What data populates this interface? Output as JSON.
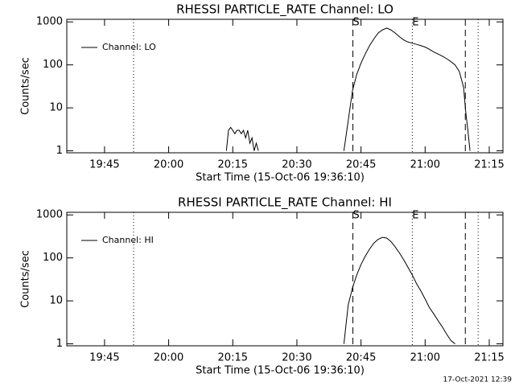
{
  "chart_data": [
    {
      "type": "line",
      "title": "RHESSI PARTICLE_RATE Channel: LO",
      "x_label": "Start Time (15-Oct-06 19:36:10)",
      "y_label": "Counts/sec",
      "log_y": true,
      "legend": "upper-left",
      "xlim": [
        1176.17,
        1278.2
      ],
      "ylim": [
        0.9,
        1150
      ],
      "xticks": [
        {
          "value": 1185,
          "label": "19:45"
        },
        {
          "value": 1200,
          "label": "20:00"
        },
        {
          "value": 1215,
          "label": "20:15"
        },
        {
          "value": 1230,
          "label": "20:30"
        },
        {
          "value": 1245,
          "label": "20:45"
        },
        {
          "value": 1260,
          "label": "21:00"
        },
        {
          "value": 1275,
          "label": "21:15"
        }
      ],
      "yticks": [
        1,
        10,
        100,
        1000
      ],
      "markers": [
        {
          "x": 1191.8,
          "style": "dotted"
        },
        {
          "x": 1243.1,
          "style": "dashed",
          "label": "S"
        },
        {
          "x": 1257,
          "style": "dotted",
          "label": "E"
        },
        {
          "x": 1269.4,
          "style": "dashed"
        },
        {
          "x": 1272.4,
          "style": "dotted"
        }
      ],
      "x": [
        1213.5,
        1214,
        1214.5,
        1215,
        1215.5,
        1216,
        1216.5,
        1217,
        1217.5,
        1218,
        1218.5,
        1219,
        1219.5,
        1220,
        1220.5,
        1221,
        1230,
        1241,
        1242,
        1243,
        1244,
        1245,
        1246,
        1247,
        1248,
        1249,
        1250,
        1251,
        1252,
        1253,
        1254,
        1255,
        1256,
        1257,
        1258,
        1259,
        1260,
        1261,
        1262,
        1263,
        1264,
        1265,
        1266,
        1267,
        1268,
        1269,
        1269.5,
        1270,
        1270.5
      ],
      "series": [
        {
          "name": "Channel: LO",
          "color": "#000000",
          "values": [
            1,
            3,
            3.5,
            3,
            2.5,
            3,
            3,
            2.5,
            3,
            2,
            3,
            1.5,
            2,
            1,
            1.5,
            1,
            null,
            1,
            5,
            25,
            60,
            110,
            180,
            280,
            400,
            550,
            650,
            720,
            650,
            550,
            450,
            380,
            340,
            320,
            300,
            280,
            260,
            230,
            200,
            180,
            160,
            140,
            120,
            100,
            70,
            30,
            8,
            3,
            1
          ]
        }
      ]
    },
    {
      "type": "line",
      "title": "RHESSI PARTICLE_RATE Channel: HI",
      "x_label": "Start Time (15-Oct-06 19:36:10)",
      "y_label": "Counts/sec",
      "log_y": true,
      "legend": "upper-left",
      "xlim": [
        1176.17,
        1278.2
      ],
      "ylim": [
        0.9,
        1150
      ],
      "xticks": [
        {
          "value": 1185,
          "label": "19:45"
        },
        {
          "value": 1200,
          "label": "20:00"
        },
        {
          "value": 1215,
          "label": "20:15"
        },
        {
          "value": 1230,
          "label": "20:30"
        },
        {
          "value": 1245,
          "label": "20:45"
        },
        {
          "value": 1260,
          "label": "21:00"
        },
        {
          "value": 1275,
          "label": "21:15"
        }
      ],
      "yticks": [
        1,
        10,
        100,
        1000
      ],
      "markers": [
        {
          "x": 1191.8,
          "style": "dotted"
        },
        {
          "x": 1243.1,
          "style": "dashed",
          "label": "S"
        },
        {
          "x": 1257,
          "style": "dotted",
          "label": "E"
        },
        {
          "x": 1269.4,
          "style": "dashed"
        },
        {
          "x": 1272.4,
          "style": "dotted"
        }
      ],
      "x": [
        1241,
        1242,
        1243,
        1244,
        1245,
        1246,
        1247,
        1248,
        1249,
        1250,
        1251,
        1252,
        1253,
        1254,
        1255,
        1256,
        1257,
        1258,
        1259,
        1260,
        1261,
        1262,
        1263,
        1264,
        1265,
        1266,
        1267
      ],
      "series": [
        {
          "name": "Channel: HI",
          "color": "#000000",
          "values": [
            1,
            8,
            20,
            40,
            70,
            110,
            160,
            220,
            270,
            300,
            290,
            240,
            180,
            130,
            90,
            60,
            40,
            25,
            17,
            11,
            7,
            5,
            3.5,
            2.5,
            1.7,
            1.2,
            1
          ]
        }
      ]
    }
  ],
  "footer": "17-Oct-2021 12:39"
}
